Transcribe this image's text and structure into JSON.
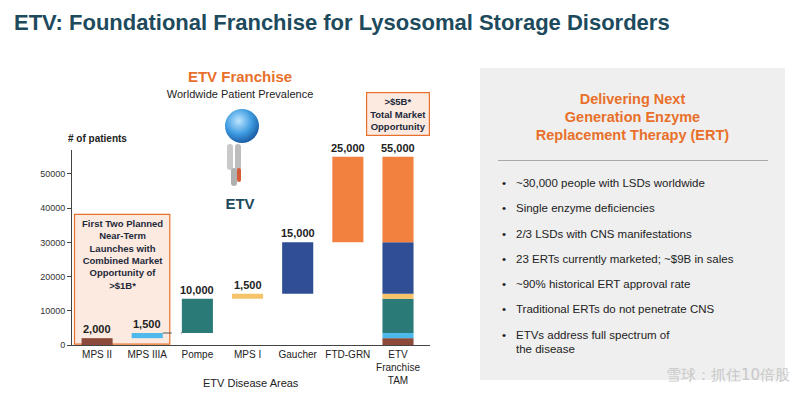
{
  "title": "ETV: Foundational Franchise for Lysosomal Storage Disorders",
  "chart_data": {
    "type": "waterfall",
    "title": "ETV Franchise",
    "subtitle": "Worldwide Patient Prevalence",
    "icon_label": "ETV",
    "y_label": "# of patients",
    "x_label": "ETV Disease Areas",
    "categories": [
      "MPS II",
      "MPS IIIA",
      "Pompe",
      "MPS I",
      "Gaucher",
      "FTD-GRN"
    ],
    "values": [
      2000,
      1500,
      10000,
      1500,
      15000,
      25000
    ],
    "value_labels": [
      "2,000",
      "1,500",
      "10,000",
      "1,500",
      "15,000",
      "25,000"
    ],
    "colors": [
      "#8C4B3A",
      "#4DB8EA",
      "#2A7A78",
      "#F6C36A",
      "#2F4E93",
      "#F2813F"
    ],
    "total": {
      "label": "ETV Franchise TAM",
      "value": 55000,
      "value_label": "55,000"
    },
    "ylim": [
      0,
      57000
    ],
    "yticks": [
      0,
      10000,
      20000,
      30000,
      40000,
      50000
    ],
    "grid": false,
    "data_labels": true,
    "callouts": [
      {
        "categories": [
          "MPS II",
          "MPS IIIA"
        ],
        "lines": [
          "First Two Planned",
          "Near-Term",
          "Launches with",
          "Combined Market",
          "Opportunity of",
          ">$1B*"
        ]
      },
      {
        "categories": [
          "ETV Franchise TAM"
        ],
        "lines": [
          ">$5B*",
          "Total Market",
          "Opportunity"
        ]
      }
    ]
  },
  "panel": {
    "heading_lines": [
      "Delivering Next",
      "Generation Enzyme",
      "Replacement Therapy (ERT)"
    ],
    "bullets": [
      [
        "~30,000 people with LSDs worldwide"
      ],
      [
        "Single enzyme deficiencies"
      ],
      [
        "2/3 LSDs with CNS manifestations"
      ],
      [
        "23 ERTs currently marketed; ~$9B in sales"
      ],
      [
        "~90% historical ERT approval rate"
      ],
      [
        "Traditional ERTs do not penetrate CNS"
      ],
      [
        "ETVs address full spectrum of",
        "the disease"
      ]
    ]
  },
  "watermark": "雪球：抓住10倍股"
}
